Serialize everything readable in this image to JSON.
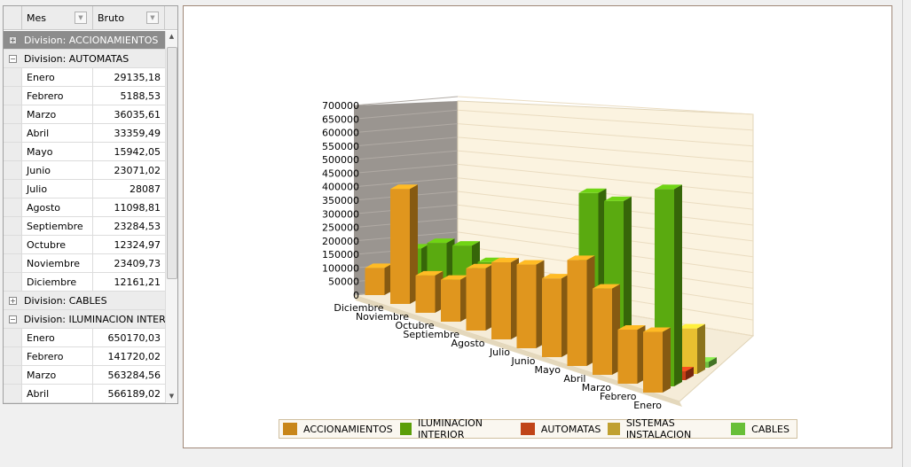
{
  "grid": {
    "columns": [
      "Mes",
      "Bruto"
    ],
    "groups": [
      {
        "label": "Division: ACCIONAMIENTOS",
        "expanded": false,
        "selected": true,
        "rows": []
      },
      {
        "label": "Division: AUTOMATAS",
        "expanded": true,
        "rows": [
          [
            "Enero",
            "29135,18"
          ],
          [
            "Febrero",
            "5188,53"
          ],
          [
            "Marzo",
            "36035,61"
          ],
          [
            "Abril",
            "33359,49"
          ],
          [
            "Mayo",
            "15942,05"
          ],
          [
            "Junio",
            "23071,02"
          ],
          [
            "Julio",
            "28087"
          ],
          [
            "Agosto",
            "11098,81"
          ],
          [
            "Septiembre",
            "23284,53"
          ],
          [
            "Octubre",
            "12324,97"
          ],
          [
            "Noviembre",
            "23409,73"
          ],
          [
            "Diciembre",
            "12161,21"
          ]
        ]
      },
      {
        "label": "Division: CABLES",
        "expanded": false,
        "rows": []
      },
      {
        "label": "Division: ILUMINACION INTERIOR",
        "expanded": true,
        "rows": [
          [
            "Enero",
            "650170,03"
          ],
          [
            "Febrero",
            "141720,02"
          ],
          [
            "Marzo",
            "563284,56"
          ],
          [
            "Abril",
            "566189,02"
          ]
        ]
      }
    ]
  },
  "chart_data": {
    "type": "bar",
    "variant": "3d-clustered",
    "categories": [
      "Enero",
      "Febrero",
      "Marzo",
      "Abril",
      "Mayo",
      "Junio",
      "Julio",
      "Agosto",
      "Septiembre",
      "Octubre",
      "Noviembre",
      "Diciembre"
    ],
    "yticks": [
      0,
      50000,
      100000,
      150000,
      200000,
      250000,
      300000,
      350000,
      400000,
      450000,
      500000,
      550000,
      600000,
      650000,
      700000
    ],
    "ylim": [
      0,
      700000
    ],
    "series": [
      {
        "name": "ACCIONAMIENTOS",
        "color": "#e0961e",
        "values": [
          200000,
          180000,
          290000,
          360000,
          270000,
          290000,
          270000,
          220000,
          150000,
          135000,
          420000,
          100000
        ]
      },
      {
        "name": "ILUMINACION INTERIOR",
        "color": "#5aaa10",
        "values": [
          650170.03,
          141720.02,
          563284.56,
          566189.02,
          100000,
          140000,
          200000,
          220000,
          250000,
          230000,
          180000,
          60000
        ]
      },
      {
        "name": "AUTOMATAS",
        "color": "#c84018",
        "values": [
          29135.18,
          5188.53,
          36035.61,
          33359.49,
          15942.05,
          23071.02,
          28087,
          11098.81,
          23284.53,
          12324.97,
          23409.73,
          12161.21
        ]
      },
      {
        "name": "SISTEMAS INSTALACION",
        "color": "#e8c030",
        "values": [
          150000,
          40000,
          20000,
          10000,
          5000,
          5000,
          5000,
          5000,
          5000,
          5000,
          5000,
          5000
        ]
      },
      {
        "name": "CABLES",
        "color": "#70c040",
        "values": [
          20000,
          10000,
          10000,
          5000,
          5000,
          5000,
          5000,
          5000,
          5000,
          5000,
          5000,
          5000
        ]
      }
    ],
    "legend": [
      "ACCIONAMIENTOS",
      "ILUMINACION INTERIOR",
      "AUTOMATAS",
      "SISTEMAS INSTALACION",
      "CABLES"
    ],
    "legend_colors": [
      "#c8861a",
      "#5a9e08",
      "#c04418",
      "#c0a030",
      "#68bf38"
    ],
    "legend_position": "bottom"
  }
}
